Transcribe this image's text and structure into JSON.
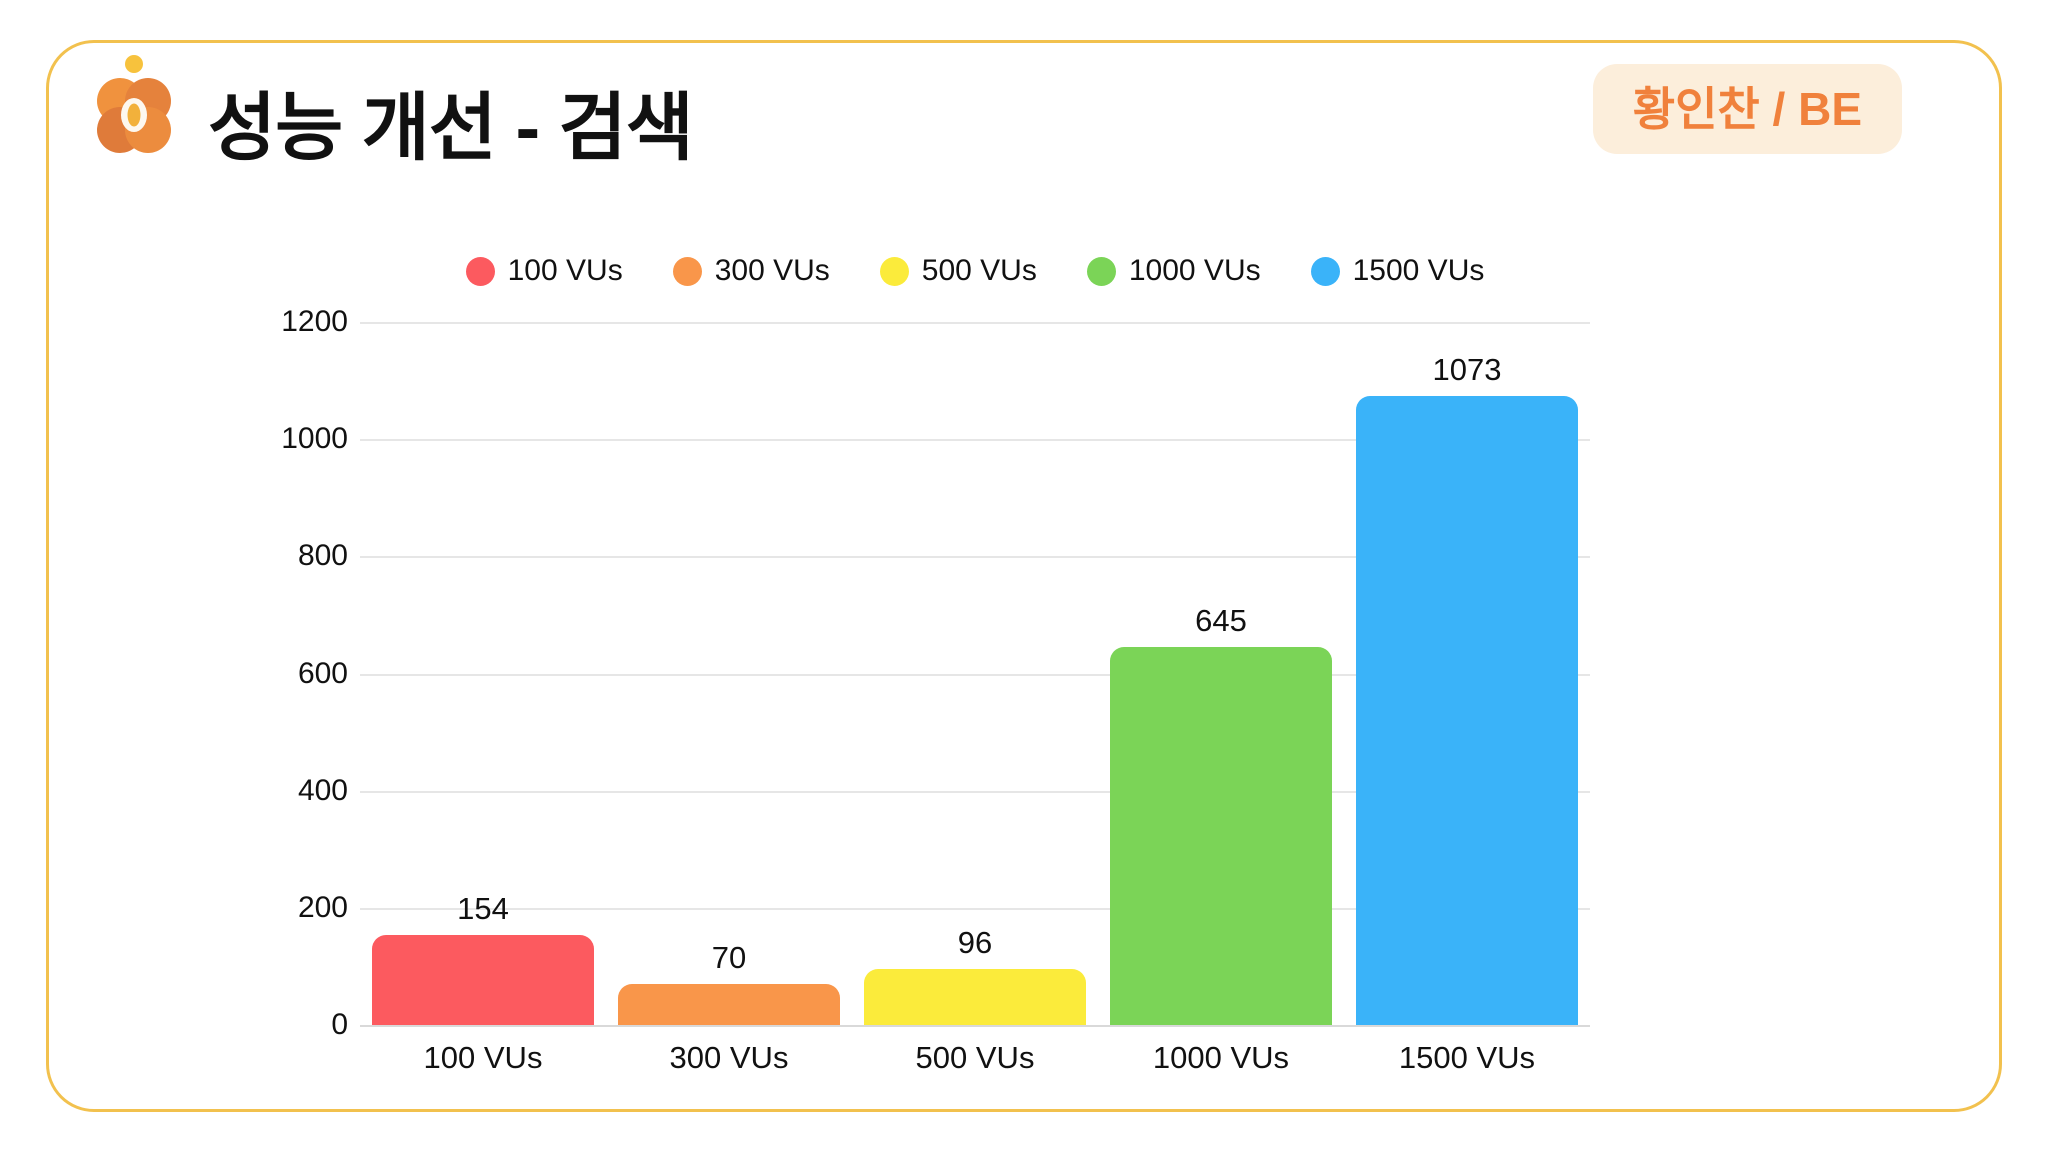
{
  "header": {
    "title": "성능 개선 - 검색",
    "badge": "황인찬 / BE",
    "accent_color": "#F0813C",
    "badge_bg": "#FCEEDB",
    "border_color": "#F2C14E",
    "logo": "four-petal-flower-logo"
  },
  "chart_data": {
    "type": "bar",
    "title": "",
    "categories": [
      "100 VUs",
      "300 VUs",
      "500 VUs",
      "1000 VUs",
      "1500 VUs"
    ],
    "values": [
      154,
      70,
      96,
      645,
      1073
    ],
    "bar_colors": [
      "#FC5A5F",
      "#F9964A",
      "#FBEB3B",
      "#7BD457",
      "#3AB3F9"
    ],
    "legend": [
      {
        "label": "100 VUs",
        "color": "#FC5A5F"
      },
      {
        "label": "300 VUs",
        "color": "#F9964A"
      },
      {
        "label": "500 VUs",
        "color": "#FBEB3B"
      },
      {
        "label": "1000 VUs",
        "color": "#7BD457"
      },
      {
        "label": "1500 VUs",
        "color": "#3AB3F9"
      }
    ],
    "legend_position": "top",
    "ylim": [
      0,
      1200
    ],
    "yticks": [
      0,
      200,
      400,
      600,
      800,
      1000,
      1200
    ],
    "grid": true,
    "xlabel": "",
    "ylabel": ""
  }
}
